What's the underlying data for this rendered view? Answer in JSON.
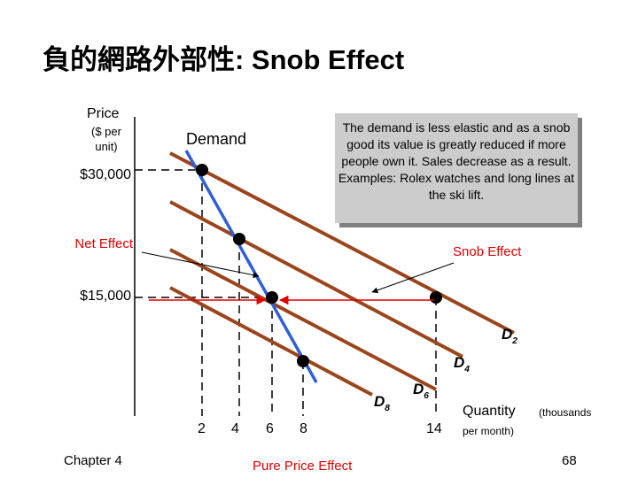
{
  "header": {
    "title": "負的網路外部性: Snob Effect"
  },
  "axes": {
    "y_label": "Price",
    "y_unit": "($ per unit)",
    "y_ticks": [
      "$30,000",
      "$15,000"
    ],
    "x_ticks": [
      "2",
      "4",
      "6",
      "8",
      "14"
    ],
    "x_label": "Quantity",
    "x_unit_1": "(thousands",
    "x_unit_2": "per month)"
  },
  "curves": {
    "demand": "Demand",
    "d_labels": [
      {
        "letter": "D",
        "sub": "2"
      },
      {
        "letter": "D",
        "sub": "4"
      },
      {
        "letter": "D",
        "sub": "6"
      },
      {
        "letter": "D",
        "sub": "8"
      }
    ]
  },
  "annotations": {
    "note": "The demand is less elastic and as a snob good its value is greatly reduced if more people own it. Sales decrease as a result. Examples: Rolex watches and long lines at the ski lift.",
    "net_effect": "Net Effect",
    "snob_effect": "Snob Effect",
    "pure_price_effect": "Pure Price Effect"
  },
  "footer": {
    "chapter": "Chapter 4",
    "page": "68"
  }
}
